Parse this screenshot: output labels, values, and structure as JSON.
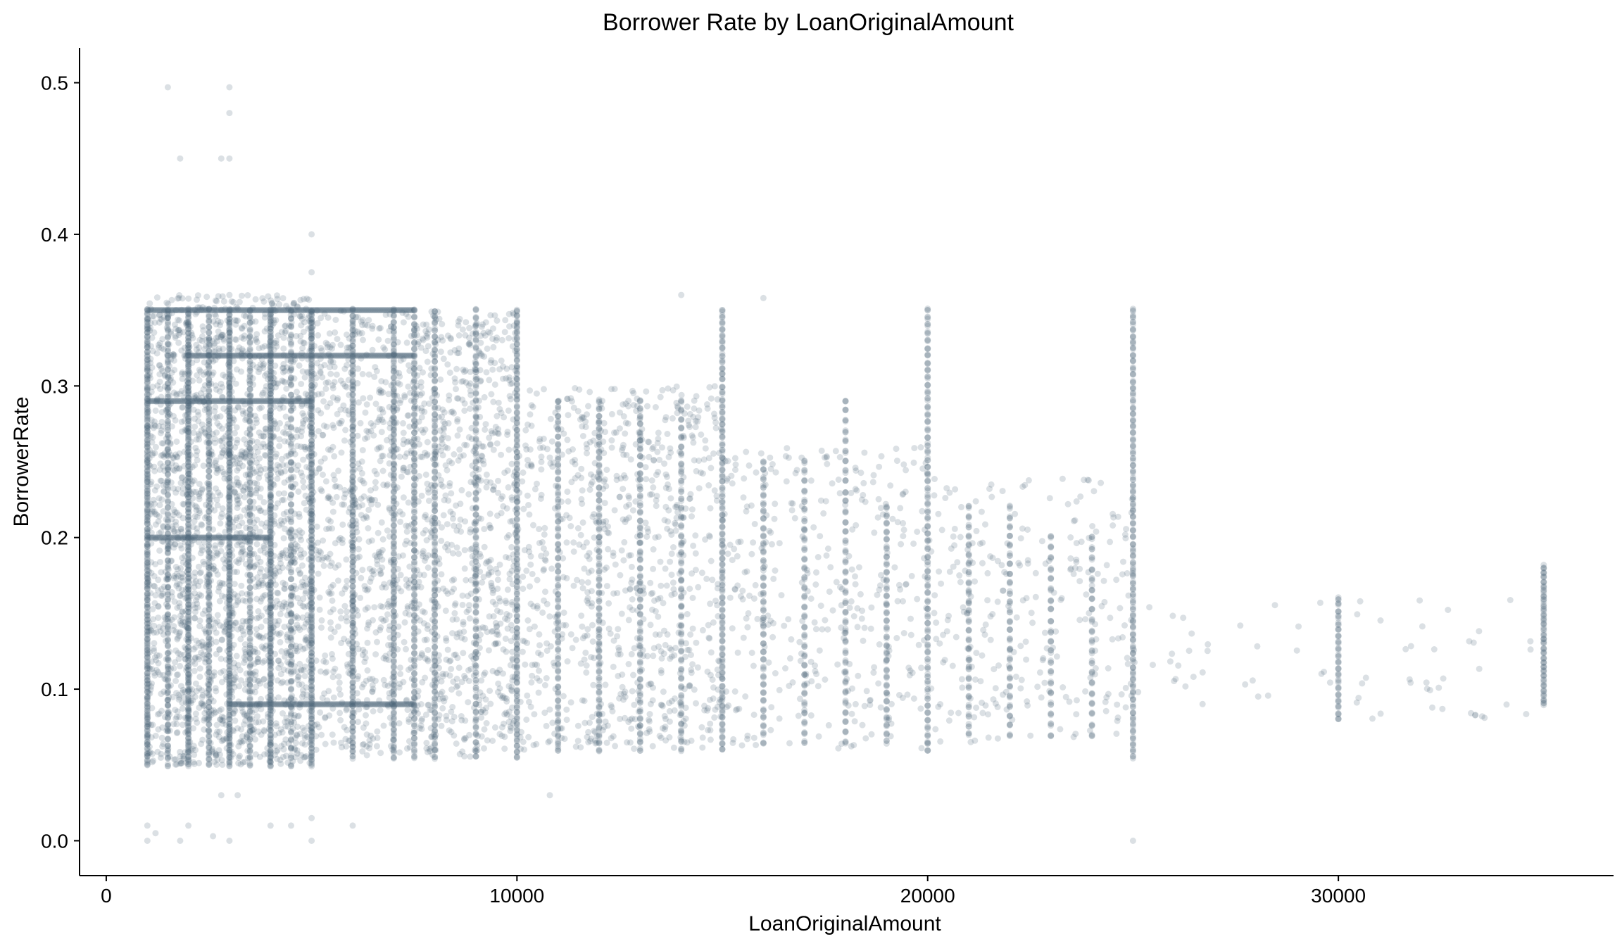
{
  "chart_data": {
    "type": "scatter",
    "title": "Borrower Rate by LoanOriginalAmount",
    "xlabel": "LoanOriginalAmount",
    "ylabel": "BorrowerRate",
    "xlim": [
      -650,
      36700
    ],
    "ylim": [
      -0.023,
      0.523
    ],
    "x_ticks": [
      0,
      10000,
      20000,
      30000
    ],
    "x_tick_labels": [
      "0",
      "10000",
      "20000",
      "30000"
    ],
    "y_ticks": [
      0.0,
      0.1,
      0.2,
      0.3,
      0.4,
      0.5
    ],
    "y_tick_labels": [
      "0.0",
      "0.1",
      "0.2",
      "0.3",
      "0.4",
      "0.5"
    ],
    "grid": false,
    "legend": "none",
    "point_color": "#4a6579",
    "point_alpha": 0.2,
    "columns": [
      {
        "x": 1000,
        "min": 0.05,
        "max": 0.35,
        "n": 120
      },
      {
        "x": 1500,
        "min": 0.05,
        "max": 0.35,
        "n": 70
      },
      {
        "x": 2000,
        "min": 0.05,
        "max": 0.35,
        "n": 120
      },
      {
        "x": 2500,
        "min": 0.05,
        "max": 0.35,
        "n": 80
      },
      {
        "x": 3000,
        "min": 0.05,
        "max": 0.35,
        "n": 120
      },
      {
        "x": 3500,
        "min": 0.05,
        "max": 0.35,
        "n": 70
      },
      {
        "x": 4000,
        "min": 0.05,
        "max": 0.35,
        "n": 120
      },
      {
        "x": 4500,
        "min": 0.05,
        "max": 0.35,
        "n": 55
      },
      {
        "x": 5000,
        "min": 0.05,
        "max": 0.35,
        "n": 110
      },
      {
        "x": 6000,
        "min": 0.055,
        "max": 0.35,
        "n": 90
      },
      {
        "x": 7000,
        "min": 0.055,
        "max": 0.35,
        "n": 80
      },
      {
        "x": 7500,
        "min": 0.055,
        "max": 0.35,
        "n": 70
      },
      {
        "x": 8000,
        "min": 0.055,
        "max": 0.35,
        "n": 70
      },
      {
        "x": 9000,
        "min": 0.055,
        "max": 0.35,
        "n": 60
      },
      {
        "x": 10000,
        "min": 0.055,
        "max": 0.35,
        "n": 80
      },
      {
        "x": 11000,
        "min": 0.06,
        "max": 0.29,
        "n": 50
      },
      {
        "x": 12000,
        "min": 0.06,
        "max": 0.29,
        "n": 50
      },
      {
        "x": 13000,
        "min": 0.06,
        "max": 0.29,
        "n": 45
      },
      {
        "x": 14000,
        "min": 0.06,
        "max": 0.29,
        "n": 40
      },
      {
        "x": 15000,
        "min": 0.06,
        "max": 0.35,
        "n": 70
      },
      {
        "x": 16000,
        "min": 0.065,
        "max": 0.25,
        "n": 35
      },
      {
        "x": 17000,
        "min": 0.065,
        "max": 0.25,
        "n": 30
      },
      {
        "x": 18000,
        "min": 0.065,
        "max": 0.29,
        "n": 35
      },
      {
        "x": 19000,
        "min": 0.065,
        "max": 0.22,
        "n": 30
      },
      {
        "x": 20000,
        "min": 0.06,
        "max": 0.35,
        "n": 60
      },
      {
        "x": 21000,
        "min": 0.07,
        "max": 0.22,
        "n": 25
      },
      {
        "x": 22000,
        "min": 0.07,
        "max": 0.22,
        "n": 25
      },
      {
        "x": 23000,
        "min": 0.07,
        "max": 0.2,
        "n": 20
      },
      {
        "x": 24000,
        "min": 0.07,
        "max": 0.2,
        "n": 20
      },
      {
        "x": 25000,
        "min": 0.055,
        "max": 0.35,
        "n": 70
      },
      {
        "x": 30000,
        "min": 0.08,
        "max": 0.16,
        "n": 20
      },
      {
        "x": 35000,
        "min": 0.09,
        "max": 0.18,
        "n": 30
      }
    ],
    "scatter_regions": [
      {
        "x_min": 1000,
        "x_max": 5000,
        "y_min": 0.05,
        "y_max": 0.36,
        "n": 2200
      },
      {
        "x_min": 5000,
        "x_max": 10000,
        "y_min": 0.055,
        "y_max": 0.35,
        "n": 1500
      },
      {
        "x_min": 10000,
        "x_max": 15000,
        "y_min": 0.06,
        "y_max": 0.3,
        "n": 800
      },
      {
        "x_min": 15000,
        "x_max": 20000,
        "y_min": 0.06,
        "y_max": 0.26,
        "n": 330
      },
      {
        "x_min": 20000,
        "x_max": 25000,
        "y_min": 0.065,
        "y_max": 0.24,
        "n": 260
      },
      {
        "x_min": 25000,
        "x_max": 35000,
        "y_min": 0.08,
        "y_max": 0.16,
        "n": 70
      }
    ],
    "horizontal_bands": [
      {
        "y": 0.35,
        "x_min": 1000,
        "x_max": 7500
      },
      {
        "y": 0.32,
        "x_min": 1900,
        "x_max": 7500
      },
      {
        "y": 0.29,
        "x_min": 1000,
        "x_max": 5000
      },
      {
        "y": 0.2,
        "x_min": 1000,
        "x_max": 4000
      },
      {
        "y": 0.09,
        "x_min": 3000,
        "x_max": 7500
      }
    ],
    "outliers": [
      {
        "x": 1500,
        "y": 0.497
      },
      {
        "x": 3000,
        "y": 0.497
      },
      {
        "x": 3000,
        "y": 0.48
      },
      {
        "x": 1800,
        "y": 0.45
      },
      {
        "x": 2800,
        "y": 0.45
      },
      {
        "x": 3000,
        "y": 0.45
      },
      {
        "x": 5000,
        "y": 0.4
      },
      {
        "x": 5000,
        "y": 0.375
      },
      {
        "x": 3000,
        "y": 0.36
      },
      {
        "x": 14000,
        "y": 0.36
      },
      {
        "x": 16000,
        "y": 0.358
      },
      {
        "x": 1000,
        "y": 0.01
      },
      {
        "x": 1000,
        "y": 0.0
      },
      {
        "x": 1200,
        "y": 0.005
      },
      {
        "x": 1800,
        "y": 0.0
      },
      {
        "x": 2000,
        "y": 0.01
      },
      {
        "x": 2600,
        "y": 0.003
      },
      {
        "x": 3000,
        "y": 0.0
      },
      {
        "x": 2800,
        "y": 0.03
      },
      {
        "x": 3200,
        "y": 0.03
      },
      {
        "x": 4000,
        "y": 0.01
      },
      {
        "x": 4500,
        "y": 0.01
      },
      {
        "x": 5000,
        "y": 0.015
      },
      {
        "x": 5000,
        "y": 0.0
      },
      {
        "x": 6000,
        "y": 0.01
      },
      {
        "x": 10800,
        "y": 0.03
      },
      {
        "x": 25000,
        "y": 0.0
      },
      {
        "x": 35000,
        "y": 0.182
      },
      {
        "x": 33500,
        "y": 0.082
      }
    ]
  }
}
